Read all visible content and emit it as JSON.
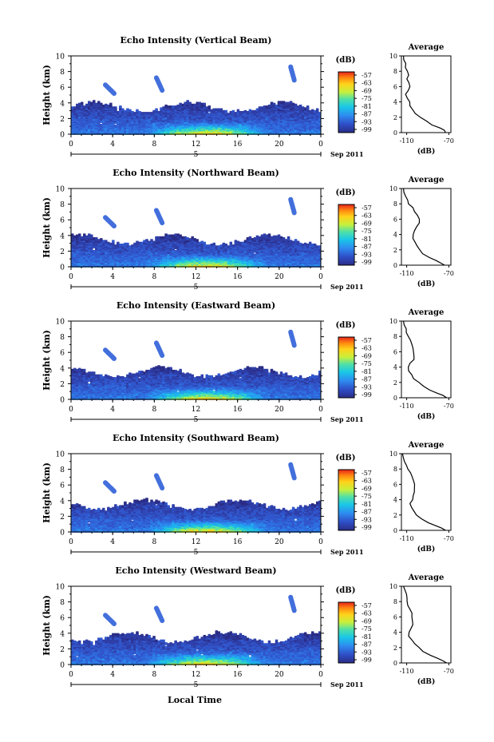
{
  "figure": {
    "xlabel": "Local Time",
    "date_label": "Sep 2011",
    "day_marker": "5",
    "colorbar_unit": "(dB)",
    "colorbar_ticks": [
      "-57",
      "-63",
      "-69",
      "-75",
      "-81",
      "-87",
      "-93",
      "-99"
    ],
    "avg_title": "Average",
    "avg_xlabel": "(dB)",
    "ylabel": "Height (km)"
  },
  "chart_data": [
    {
      "type": "heatmap",
      "title": "Echo Intensity (Vertical Beam)",
      "x_ticks": [
        "0",
        "4",
        "8",
        "12",
        "16",
        "20",
        "0"
      ],
      "y_ticks": [
        "0",
        "2",
        "4",
        "6",
        "8",
        "10"
      ],
      "xlim": [
        0,
        24
      ],
      "ylim": [
        0,
        10
      ],
      "colorbar_range_db": [
        -99,
        -57
      ],
      "profile": {
        "type": "line",
        "title": "Average",
        "xlim": [
          -115,
          -68
        ],
        "ylim": [
          0,
          10
        ],
        "x_ticks": [
          "-110",
          "-70"
        ],
        "y_ticks": [
          "0",
          "2",
          "4",
          "6",
          "8",
          "10"
        ],
        "height": [
          0,
          0.3,
          0.6,
          1,
          1.5,
          2,
          2.5,
          3,
          3.5,
          4,
          4.5,
          5,
          5.5,
          6,
          6.5,
          7,
          7.5,
          8,
          8.5,
          9,
          9.5,
          10
        ],
        "db": [
          -73,
          -75,
          -79,
          -86,
          -92,
          -97,
          -101,
          -104,
          -106,
          -107,
          -109,
          -111,
          -108,
          -106,
          -107,
          -110,
          -108,
          -110,
          -112,
          -111,
          -112,
          -113
        ]
      }
    },
    {
      "type": "heatmap",
      "title": "Echo Intensity (Northward Beam)",
      "x_ticks": [
        "0",
        "4",
        "8",
        "12",
        "16",
        "20",
        "0"
      ],
      "y_ticks": [
        "0",
        "2",
        "4",
        "6",
        "8",
        "10"
      ],
      "xlim": [
        0,
        24
      ],
      "ylim": [
        0,
        10
      ],
      "colorbar_range_db": [
        -99,
        -57
      ],
      "profile": {
        "type": "line",
        "title": "Average",
        "xlim": [
          -115,
          -68
        ],
        "ylim": [
          0,
          10
        ],
        "x_ticks": [
          "-110",
          "-70"
        ],
        "y_ticks": [
          "0",
          "2",
          "4",
          "6",
          "8",
          "10"
        ],
        "height": [
          0,
          0.3,
          0.6,
          1,
          1.5,
          2,
          2.5,
          3,
          3.5,
          4,
          4.5,
          5,
          5.5,
          6,
          6.5,
          7,
          7.5,
          8,
          8.5,
          9,
          9.5,
          10
        ],
        "db": [
          -74,
          -78,
          -83,
          -89,
          -94,
          -98,
          -101,
          -103,
          -104,
          -104,
          -102,
          -100,
          -98,
          -97,
          -99,
          -102,
          -105,
          -108,
          -110,
          -111,
          -112,
          -113
        ]
      }
    },
    {
      "type": "heatmap",
      "title": "Echo Intensity (Eastward Beam)",
      "x_ticks": [
        "0",
        "4",
        "8",
        "12",
        "16",
        "20",
        "0"
      ],
      "y_ticks": [
        "0",
        "2",
        "4",
        "6",
        "8",
        "10"
      ],
      "xlim": [
        0,
        24
      ],
      "ylim": [
        0,
        10
      ],
      "colorbar_range_db": [
        -99,
        -57
      ],
      "profile": {
        "type": "line",
        "title": "Average",
        "xlim": [
          -115,
          -68
        ],
        "ylim": [
          0,
          10
        ],
        "x_ticks": [
          "-110",
          "-70"
        ],
        "y_ticks": [
          "0",
          "2",
          "4",
          "6",
          "8",
          "10"
        ],
        "height": [
          0,
          0.3,
          0.6,
          1,
          1.5,
          2,
          2.5,
          3,
          3.5,
          4,
          4.5,
          5,
          5.5,
          6,
          6.5,
          7,
          7.5,
          8,
          8.5,
          9,
          9.5,
          10
        ],
        "db": [
          -72,
          -76,
          -81,
          -88,
          -94,
          -99,
          -103,
          -106,
          -108,
          -108,
          -106,
          -104,
          -103,
          -104,
          -105,
          -106,
          -107,
          -108,
          -110,
          -111,
          -112,
          -113
        ]
      }
    },
    {
      "type": "heatmap",
      "title": "Echo Intensity (Southward Beam)",
      "x_ticks": [
        "0",
        "4",
        "8",
        "12",
        "16",
        "20",
        "0"
      ],
      "y_ticks": [
        "0",
        "2",
        "4",
        "6",
        "8",
        "10"
      ],
      "xlim": [
        0,
        24
      ],
      "ylim": [
        0,
        10
      ],
      "colorbar_range_db": [
        -99,
        -57
      ],
      "profile": {
        "type": "line",
        "title": "Average",
        "xlim": [
          -115,
          -68
        ],
        "ylim": [
          0,
          10
        ],
        "x_ticks": [
          "-110",
          "-70"
        ],
        "y_ticks": [
          "0",
          "2",
          "4",
          "6",
          "8",
          "10"
        ],
        "height": [
          0,
          0.3,
          0.6,
          1,
          1.5,
          2,
          2.5,
          3,
          3.5,
          4,
          4.5,
          5,
          5.5,
          6,
          6.5,
          7,
          7.5,
          8,
          8.5,
          9,
          9.5,
          10
        ],
        "db": [
          -73,
          -77,
          -82,
          -89,
          -95,
          -100,
          -103,
          -105,
          -106,
          -105,
          -103,
          -102,
          -102,
          -103,
          -104,
          -105,
          -107,
          -109,
          -111,
          -112,
          -113,
          -114
        ]
      }
    },
    {
      "type": "heatmap",
      "title": "Echo Intensity (Westward Beam)",
      "x_ticks": [
        "0",
        "4",
        "8",
        "12",
        "16",
        "20",
        "0"
      ],
      "y_ticks": [
        "0",
        "2",
        "4",
        "6",
        "8",
        "10"
      ],
      "xlim": [
        0,
        24
      ],
      "ylim": [
        0,
        10
      ],
      "colorbar_range_db": [
        -99,
        -57
      ],
      "profile": {
        "type": "line",
        "title": "Average",
        "xlim": [
          -115,
          -68
        ],
        "ylim": [
          0,
          10
        ],
        "x_ticks": [
          "-110",
          "-70"
        ],
        "y_ticks": [
          "0",
          "2",
          "4",
          "6",
          "8",
          "10"
        ],
        "height": [
          0,
          0.3,
          0.6,
          1,
          1.5,
          2,
          2.5,
          3,
          3.5,
          4,
          4.5,
          5,
          5.5,
          6,
          6.5,
          7,
          7.5,
          8,
          8.5,
          9,
          9.5,
          10
        ],
        "db": [
          -72,
          -76,
          -81,
          -88,
          -94,
          -99,
          -103,
          -106,
          -108,
          -107,
          -105,
          -104,
          -104,
          -105,
          -106,
          -107,
          -108,
          -109,
          -110,
          -111,
          -112,
          -113
        ]
      }
    }
  ]
}
